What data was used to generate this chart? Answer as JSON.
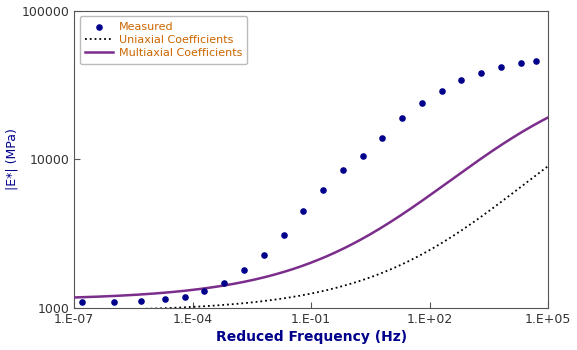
{
  "xlabel": "Reduced Frequency (Hz)",
  "ylabel": "|E*| (MPa)",
  "ylim": [
    1000,
    100000
  ],
  "xlim": [
    1e-07,
    100000.0
  ],
  "legend_labels": [
    "Measured",
    "Uniaxial Coefficients",
    "Multiaxial Coefficients"
  ],
  "multiaxial_color": "#7B2D8B",
  "uniaxial_color": "#000000",
  "measured_color": "#00008B",
  "bg_color": "#ffffff",
  "axis_label_color": "#00008B",
  "tick_label_color": "#333333",
  "sigmoid_params_multiaxial": {
    "delta": 3.057,
    "alpha": 1.595,
    "beta": 1.2,
    "gamma": 0.48
  },
  "sigmoid_params_uniaxial": {
    "delta": 2.98,
    "alpha": 1.7,
    "beta": 2.1,
    "gamma": 0.48
  },
  "measured_freqs_log": [
    -6.8,
    -6.0,
    -5.3,
    -4.7,
    -4.2,
    -3.7,
    -3.2,
    -2.7,
    -2.2,
    -1.7,
    -1.2,
    -0.7,
    -0.2,
    0.3,
    0.8,
    1.3,
    1.8,
    2.3,
    2.8,
    3.3,
    3.8,
    4.3,
    4.7
  ],
  "measured_values": [
    1100,
    1110,
    1130,
    1160,
    1200,
    1300,
    1480,
    1800,
    2300,
    3100,
    4500,
    6200,
    8500,
    10500,
    14000,
    19000,
    24000,
    29000,
    34000,
    38000,
    42000,
    44500,
    46000
  ]
}
